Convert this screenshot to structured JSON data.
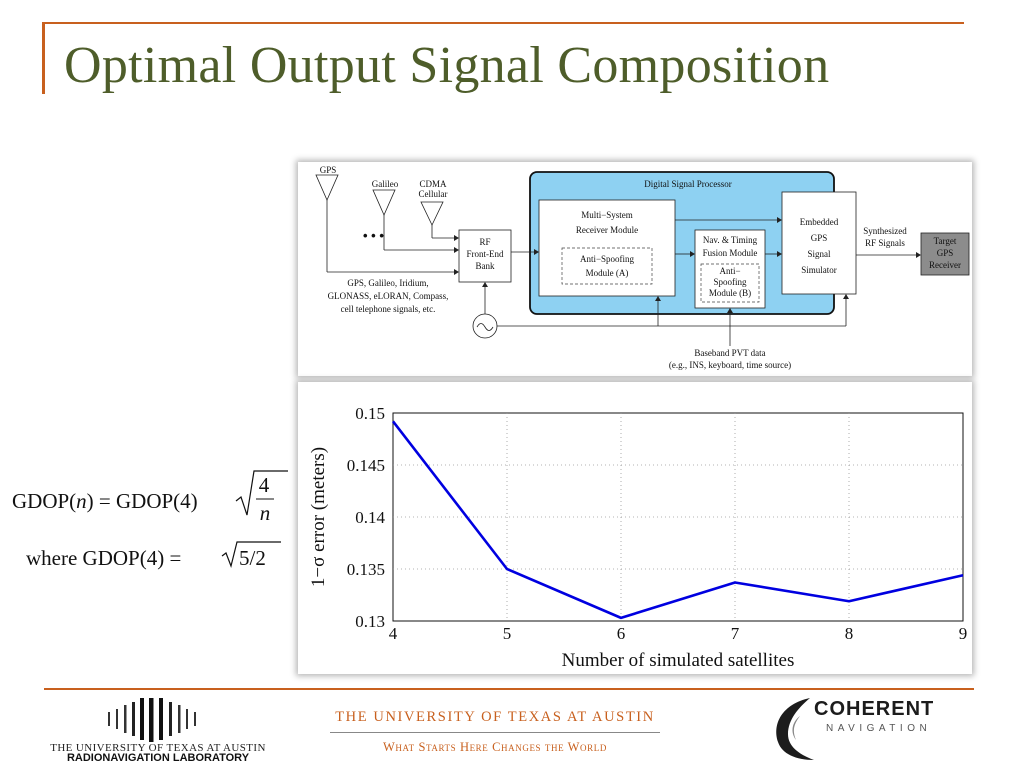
{
  "slide": {
    "title": "Optimal Output Signal Composition"
  },
  "formula": {
    "line1_lhs_prefix": "GDOP(",
    "line1_lhs_var": "n",
    "line1_lhs_suffix": ") = GDOP(4)",
    "line1_fraction_num": "4",
    "line1_fraction_den": "n",
    "line2_prefix": "where GDOP(4) =",
    "line2_radicand": "5/2"
  },
  "diagram": {
    "antennas": {
      "gps": "GPS",
      "galileo": "Galileo",
      "cdma_line1": "CDMA",
      "cdma_line2": "Cellular",
      "ellipsis": "• • •"
    },
    "signals_caption": [
      "GPS, Galileo, Iridium,",
      "GLONASS, eLORAN, Compass,",
      "cell telephone signals, etc."
    ],
    "rf_frontend": [
      "RF",
      "Front-End",
      "Bank"
    ],
    "dsp_title": "Digital Signal Processor",
    "receiver_module": [
      "Multi−System",
      "Receiver Module"
    ],
    "antispoof_a": [
      "Anti−Spoofing",
      "Module (A)"
    ],
    "nav_fusion": [
      "Nav. & Timing",
      "Fusion Module"
    ],
    "antispoof_b": [
      "Anti−",
      "Spoofing",
      "Module (B)"
    ],
    "simulator": [
      "Embedded",
      "GPS",
      "Signal",
      "Simulator"
    ],
    "synth_label": [
      "Synthesized",
      "RF Signals"
    ],
    "target": [
      "Target",
      "GPS",
      "Receiver"
    ],
    "baseband": [
      "Baseband PVT data",
      "(e.g., INS, keyboard, time source)"
    ],
    "colors": {
      "dsp_fill": "#8ed1f2",
      "target_fill": "#8c8c8c"
    }
  },
  "chart_data": {
    "type": "line",
    "x": [
      4,
      5,
      6,
      7,
      8,
      9
    ],
    "series": [
      {
        "values": [
          0.1492,
          0.135,
          0.1303,
          0.1337,
          0.1319,
          0.1344
        ],
        "color": "#0000e0"
      }
    ],
    "xlabel": "Number of simulated satellites",
    "ylabel": "1−σ error (meters)",
    "xlim": [
      4,
      9
    ],
    "ylim": [
      0.13,
      0.15
    ],
    "xticks": [
      "4",
      "5",
      "6",
      "7",
      "8",
      "9"
    ],
    "yticks": [
      "0.13",
      "0.135",
      "0.14",
      "0.145",
      "0.15"
    ],
    "grid": true
  },
  "footer": {
    "rnl_line1": "THE UNIVERSITY OF TEXAS AT AUSTIN",
    "rnl_line2": "RADIONAVIGATION LABORATORY",
    "ut_name": "THE UNIVERSITY OF TEXAS AT AUSTIN",
    "ut_motto": "What Starts Here Changes the World",
    "cn_word1": "COHERENT",
    "cn_word2": "NAVIGATION",
    "accent_color": "#c8601e"
  }
}
